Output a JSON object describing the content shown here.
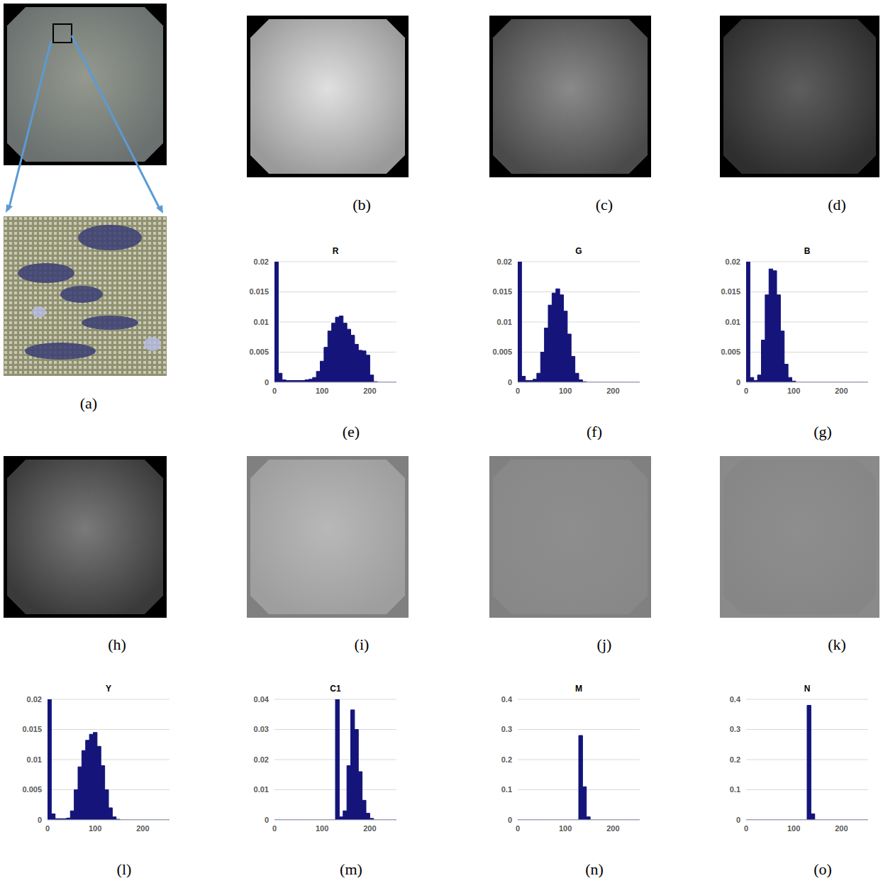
{
  "image_panels": [
    "(a)",
    "(b)",
    "(c)",
    "(d)",
    "(h)",
    "(i)",
    "(j)",
    "(k)"
  ],
  "chart_data": [
    {
      "label": "(e)",
      "type": "histogram",
      "title": "R",
      "color": "#14147a",
      "bins": [
        0,
        8,
        16,
        24,
        32,
        40,
        48,
        56,
        64,
        72,
        80,
        88,
        96,
        104,
        112,
        120,
        128,
        136,
        144,
        152,
        160,
        168,
        176,
        184,
        192,
        200,
        208,
        216,
        224,
        232,
        240,
        248,
        256
      ],
      "values": [
        0.02,
        0.0015,
        0.0004,
        0.0003,
        0.0003,
        0.0003,
        0.0003,
        0.0003,
        0.0004,
        0.0005,
        0.0008,
        0.0018,
        0.0035,
        0.0058,
        0.0085,
        0.0098,
        0.0108,
        0.011,
        0.0098,
        0.0088,
        0.0078,
        0.0063,
        0.0053,
        0.0052,
        0.0045,
        0.0012,
        0.0001,
        0,
        0,
        0,
        0,
        0
      ],
      "xlim": [
        0,
        256
      ],
      "xticks": [
        0,
        100,
        200
      ],
      "ylim": [
        0,
        0.02
      ],
      "yticks": [
        0,
        0.005,
        0.01,
        0.015,
        0.02
      ],
      "grid": true
    },
    {
      "label": "(f)",
      "type": "histogram",
      "title": "G",
      "color": "#14147a",
      "bins": [
        0,
        8,
        16,
        24,
        32,
        40,
        48,
        56,
        64,
        72,
        80,
        88,
        96,
        104,
        112,
        120,
        128,
        136,
        144,
        152,
        160,
        168,
        176,
        184,
        192,
        200,
        208,
        216,
        224,
        232,
        240,
        248,
        256
      ],
      "values": [
        0.02,
        0.001,
        0.0003,
        0.0003,
        0.0005,
        0.0015,
        0.005,
        0.009,
        0.0128,
        0.0148,
        0.0155,
        0.0145,
        0.0118,
        0.008,
        0.0043,
        0.0015,
        0.0004,
        0.0001,
        0,
        0,
        0,
        0,
        0,
        0,
        0,
        0,
        0,
        0,
        0,
        0,
        0,
        0
      ],
      "xlim": [
        0,
        256
      ],
      "xticks": [
        0,
        100,
        200
      ],
      "ylim": [
        0,
        0.02
      ],
      "yticks": [
        0,
        0.005,
        0.01,
        0.015,
        0.02
      ],
      "grid": true
    },
    {
      "label": "(g)",
      "type": "histogram",
      "title": "B",
      "color": "#14147a",
      "bins": [
        0,
        8,
        16,
        24,
        32,
        40,
        48,
        56,
        64,
        72,
        80,
        88,
        96,
        104,
        112,
        120,
        128,
        136,
        144,
        152,
        160,
        168,
        176,
        184,
        192,
        200,
        208,
        216,
        224,
        232,
        240,
        248,
        256
      ],
      "values": [
        0.02,
        0.0008,
        0.0003,
        0.0012,
        0.007,
        0.0145,
        0.0188,
        0.0185,
        0.0145,
        0.0085,
        0.003,
        0.0008,
        0.0002,
        0,
        0,
        0,
        0,
        0,
        0,
        0,
        0,
        0,
        0,
        0,
        0,
        0,
        0,
        0,
        0,
        0,
        0,
        0
      ],
      "xlim": [
        0,
        256
      ],
      "xticks": [
        0,
        100,
        200
      ],
      "ylim": [
        0,
        0.02
      ],
      "yticks": [
        0,
        0.005,
        0.01,
        0.015,
        0.02
      ],
      "grid": true
    },
    {
      "label": "(l)",
      "type": "histogram",
      "title": "Y",
      "color": "#14147a",
      "bins": [
        0,
        8,
        16,
        24,
        32,
        40,
        48,
        56,
        64,
        72,
        80,
        88,
        96,
        104,
        112,
        120,
        128,
        136,
        144,
        152,
        160,
        168,
        176,
        184,
        192,
        200,
        208,
        216,
        224,
        232,
        240,
        248,
        256
      ],
      "values": [
        0.02,
        0.001,
        0.0002,
        0.0002,
        0.0002,
        0.0003,
        0.0015,
        0.005,
        0.0088,
        0.0115,
        0.0132,
        0.0142,
        0.0145,
        0.0122,
        0.009,
        0.005,
        0.002,
        0.0005,
        0.0001,
        0,
        0,
        0,
        0,
        0,
        0,
        0,
        0,
        0,
        0,
        0,
        0,
        0
      ],
      "xlim": [
        0,
        256
      ],
      "xticks": [
        0,
        100,
        200
      ],
      "ylim": [
        0,
        0.02
      ],
      "yticks": [
        0,
        0.005,
        0.01,
        0.015,
        0.02
      ],
      "grid": true
    },
    {
      "label": "(m)",
      "type": "histogram",
      "title": "C1",
      "color": "#14147a",
      "bins": [
        0,
        8,
        16,
        24,
        32,
        40,
        48,
        56,
        64,
        72,
        80,
        88,
        96,
        104,
        112,
        120,
        128,
        136,
        144,
        152,
        160,
        168,
        176,
        184,
        192,
        200,
        208,
        216,
        224,
        232,
        240,
        248,
        256
      ],
      "values": [
        0,
        0,
        0,
        0,
        0,
        0,
        0,
        0,
        0,
        0,
        0,
        0,
        0,
        0,
        0,
        0,
        0.04,
        0.001,
        0.003,
        0.018,
        0.0365,
        0.03,
        0.016,
        0.0065,
        0.0022,
        0.0005,
        0,
        0,
        0,
        0,
        0,
        0
      ],
      "xlim": [
        0,
        256
      ],
      "xticks": [
        0,
        100,
        200
      ],
      "ylim": [
        0,
        0.04
      ],
      "yticks": [
        0,
        0.01,
        0.02,
        0.03,
        0.04
      ],
      "grid": true
    },
    {
      "label": "(n)",
      "type": "histogram",
      "title": "M",
      "color": "#14147a",
      "bins": [
        0,
        8,
        16,
        24,
        32,
        40,
        48,
        56,
        64,
        72,
        80,
        88,
        96,
        104,
        112,
        120,
        128,
        136,
        144,
        152,
        160,
        168,
        176,
        184,
        192,
        200,
        208,
        216,
        224,
        232,
        240,
        248,
        256
      ],
      "values": [
        0,
        0,
        0,
        0,
        0,
        0,
        0,
        0,
        0,
        0,
        0,
        0,
        0,
        0,
        0,
        0,
        0.28,
        0.11,
        0.01,
        0,
        0,
        0,
        0,
        0,
        0,
        0,
        0,
        0,
        0,
        0,
        0,
        0
      ],
      "xlim": [
        0,
        256
      ],
      "xticks": [
        0,
        100,
        200
      ],
      "ylim": [
        0,
        0.4
      ],
      "yticks": [
        0,
        0.1,
        0.2,
        0.3,
        0.4
      ],
      "grid": true
    },
    {
      "label": "(o)",
      "type": "histogram",
      "title": "N",
      "color": "#14147a",
      "bins": [
        0,
        8,
        16,
        24,
        32,
        40,
        48,
        56,
        64,
        72,
        80,
        88,
        96,
        104,
        112,
        120,
        128,
        136,
        144,
        152,
        160,
        168,
        176,
        184,
        192,
        200,
        208,
        216,
        224,
        232,
        240,
        248,
        256
      ],
      "values": [
        0,
        0,
        0,
        0,
        0,
        0,
        0,
        0,
        0,
        0,
        0,
        0,
        0,
        0,
        0,
        0,
        0.38,
        0.02,
        0,
        0,
        0,
        0,
        0,
        0,
        0,
        0,
        0,
        0,
        0,
        0,
        0,
        0
      ],
      "xlim": [
        0,
        256
      ],
      "xticks": [
        0,
        100,
        200
      ],
      "ylim": [
        0,
        0.4
      ],
      "yticks": [
        0,
        0.1,
        0.2,
        0.3,
        0.4
      ],
      "grid": true
    }
  ]
}
